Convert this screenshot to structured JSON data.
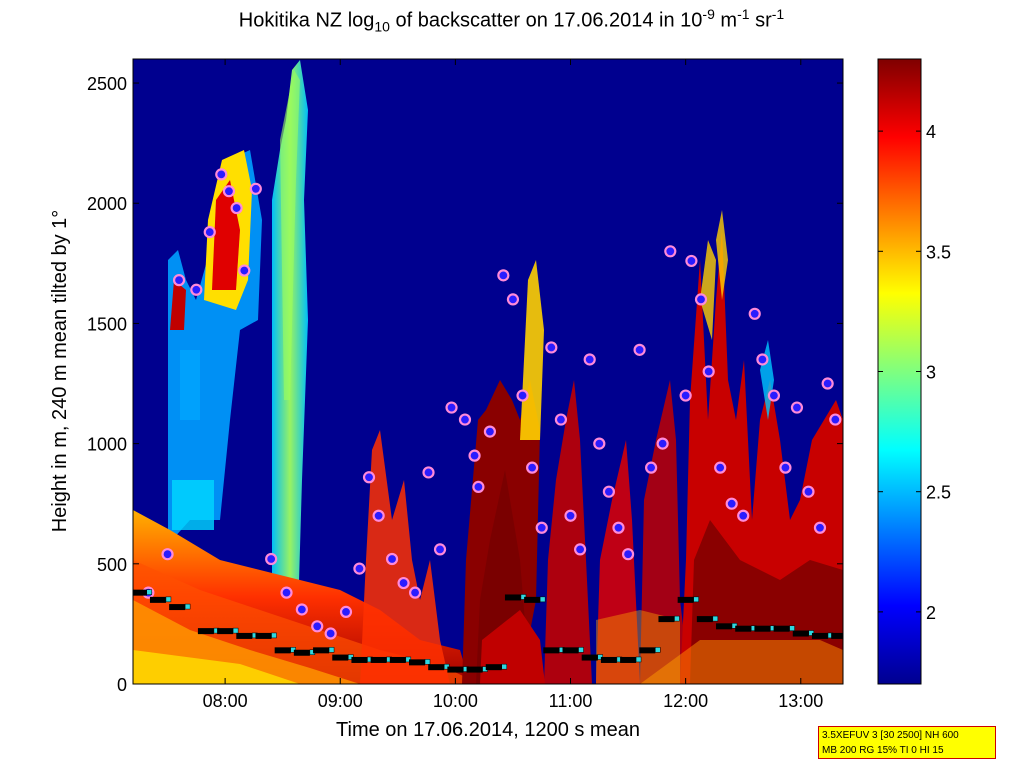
{
  "title": {
    "prefix": "Hokitika NZ log",
    "sub1": "10",
    "mid": " of backscatter on 17.06.2014 in 10",
    "sup1": "-9",
    "unit1": " m",
    "sup2": "-1",
    "unit2": " sr",
    "sup3": "-1"
  },
  "info_box": {
    "line1": "3.5XEFUV 3 [30 2500] NH 600",
    "line2": "MB 200 RG 15% TI 0 HI 15"
  },
  "chart_data": {
    "type": "heatmap",
    "title": "Hokitika NZ log10 of backscatter on 17.06.2014 in 10^-9 m^-1 sr^-1",
    "xlabel": "Time on 17.06.2014, 1200 s mean",
    "ylabel": "Height in m, 240 m mean tilted by 1°",
    "x_ticks": [
      "08:00",
      "09:00",
      "10:00",
      "11:00",
      "12:00",
      "13:00"
    ],
    "y_ticks": [
      0,
      500,
      1000,
      1500,
      2000,
      2500
    ],
    "xlim": [
      "07:12",
      "13:22"
    ],
    "ylim": [
      0,
      2600
    ],
    "colorbar": {
      "ticks": [
        2,
        2.5,
        3,
        3.5,
        4
      ],
      "range": [
        1.7,
        4.3
      ],
      "colormap": "jet"
    },
    "colors": {
      "background": "#00008f",
      "cloud_marker_fill": "#2a1cff",
      "cloud_marker_outline": "#ff8ad8",
      "boundary_layer_marker": "#000000",
      "aerosol_layer_marker": "#2ed8e0"
    },
    "series": [
      {
        "marker": "cloud",
        "x": [
          "07:20",
          "07:30",
          "07:36",
          "07:45",
          "07:52",
          "07:58",
          "08:02",
          "08:06",
          "08:10",
          "08:16",
          "08:24",
          "08:32",
          "08:40",
          "08:48",
          "08:55",
          "09:03",
          "09:10",
          "09:15",
          "09:20",
          "09:27",
          "09:33",
          "09:39",
          "09:46",
          "09:52",
          "09:58",
          "10:05",
          "10:10",
          "10:12",
          "10:18",
          "10:25",
          "10:30",
          "10:35",
          "10:40",
          "10:45",
          "10:50",
          "10:55",
          "11:00",
          "11:05",
          "11:10",
          "11:15",
          "11:20",
          "11:25",
          "11:30",
          "11:36",
          "11:42",
          "11:48",
          "11:52",
          "12:00",
          "12:03",
          "12:08",
          "12:12",
          "12:18",
          "12:24",
          "12:30",
          "12:36",
          "12:40",
          "12:46",
          "12:52",
          "12:58",
          "13:04",
          "13:10",
          "13:14",
          "13:18"
        ],
        "y": [
          380,
          540,
          1680,
          1640,
          1880,
          2120,
          2050,
          1980,
          1720,
          2060,
          520,
          380,
          310,
          240,
          210,
          300,
          480,
          860,
          700,
          520,
          420,
          380,
          880,
          560,
          1150,
          1100,
          950,
          820,
          1050,
          1700,
          1600,
          1200,
          900,
          650,
          1400,
          1100,
          700,
          560,
          1350,
          1000,
          800,
          650,
          540,
          1390,
          900,
          1000,
          1800,
          1200,
          1760,
          1600,
          1300,
          900,
          750,
          700,
          1540,
          1350,
          1200,
          900,
          1150,
          800,
          650,
          1250,
          1100
        ]
      },
      {
        "marker": "boundary_layer",
        "x": [
          "07:15",
          "07:25",
          "07:35",
          "07:50",
          "08:00",
          "08:10",
          "08:20",
          "08:30",
          "08:40",
          "08:50",
          "09:00",
          "09:10",
          "09:20",
          "09:30",
          "09:40",
          "09:50",
          "10:00",
          "10:10",
          "10:20",
          "10:30",
          "10:40",
          "10:50",
          "11:00",
          "11:10",
          "11:20",
          "11:30",
          "11:40",
          "11:50",
          "12:00",
          "12:10",
          "12:20",
          "12:30",
          "12:40",
          "12:50",
          "13:00",
          "13:10",
          "13:20"
        ],
        "y": [
          380,
          350,
          320,
          220,
          220,
          200,
          200,
          140,
          130,
          140,
          110,
          100,
          100,
          100,
          90,
          70,
          60,
          60,
          70,
          360,
          350,
          140,
          140,
          110,
          100,
          100,
          140,
          270,
          350,
          270,
          240,
          230,
          230,
          230,
          210,
          200,
          200
        ]
      }
    ]
  }
}
